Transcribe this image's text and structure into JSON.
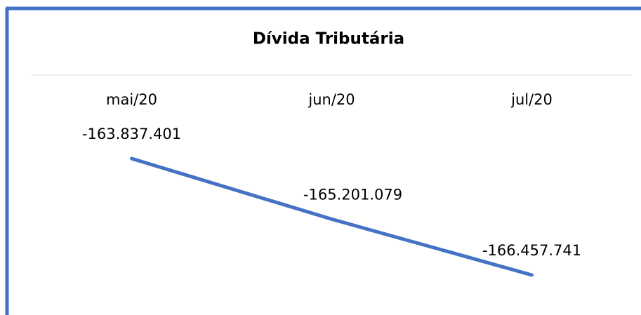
{
  "chart_data": {
    "type": "line",
    "title": "Dívida Tributária",
    "categories": [
      "mai/20",
      "jun/20",
      "jul/20"
    ],
    "values": [
      -163837401,
      -165201079,
      -166457741
    ],
    "value_labels": [
      "-163.837.401",
      "-165.201.079",
      "-166.457.741"
    ],
    "color": "#4472c4"
  }
}
